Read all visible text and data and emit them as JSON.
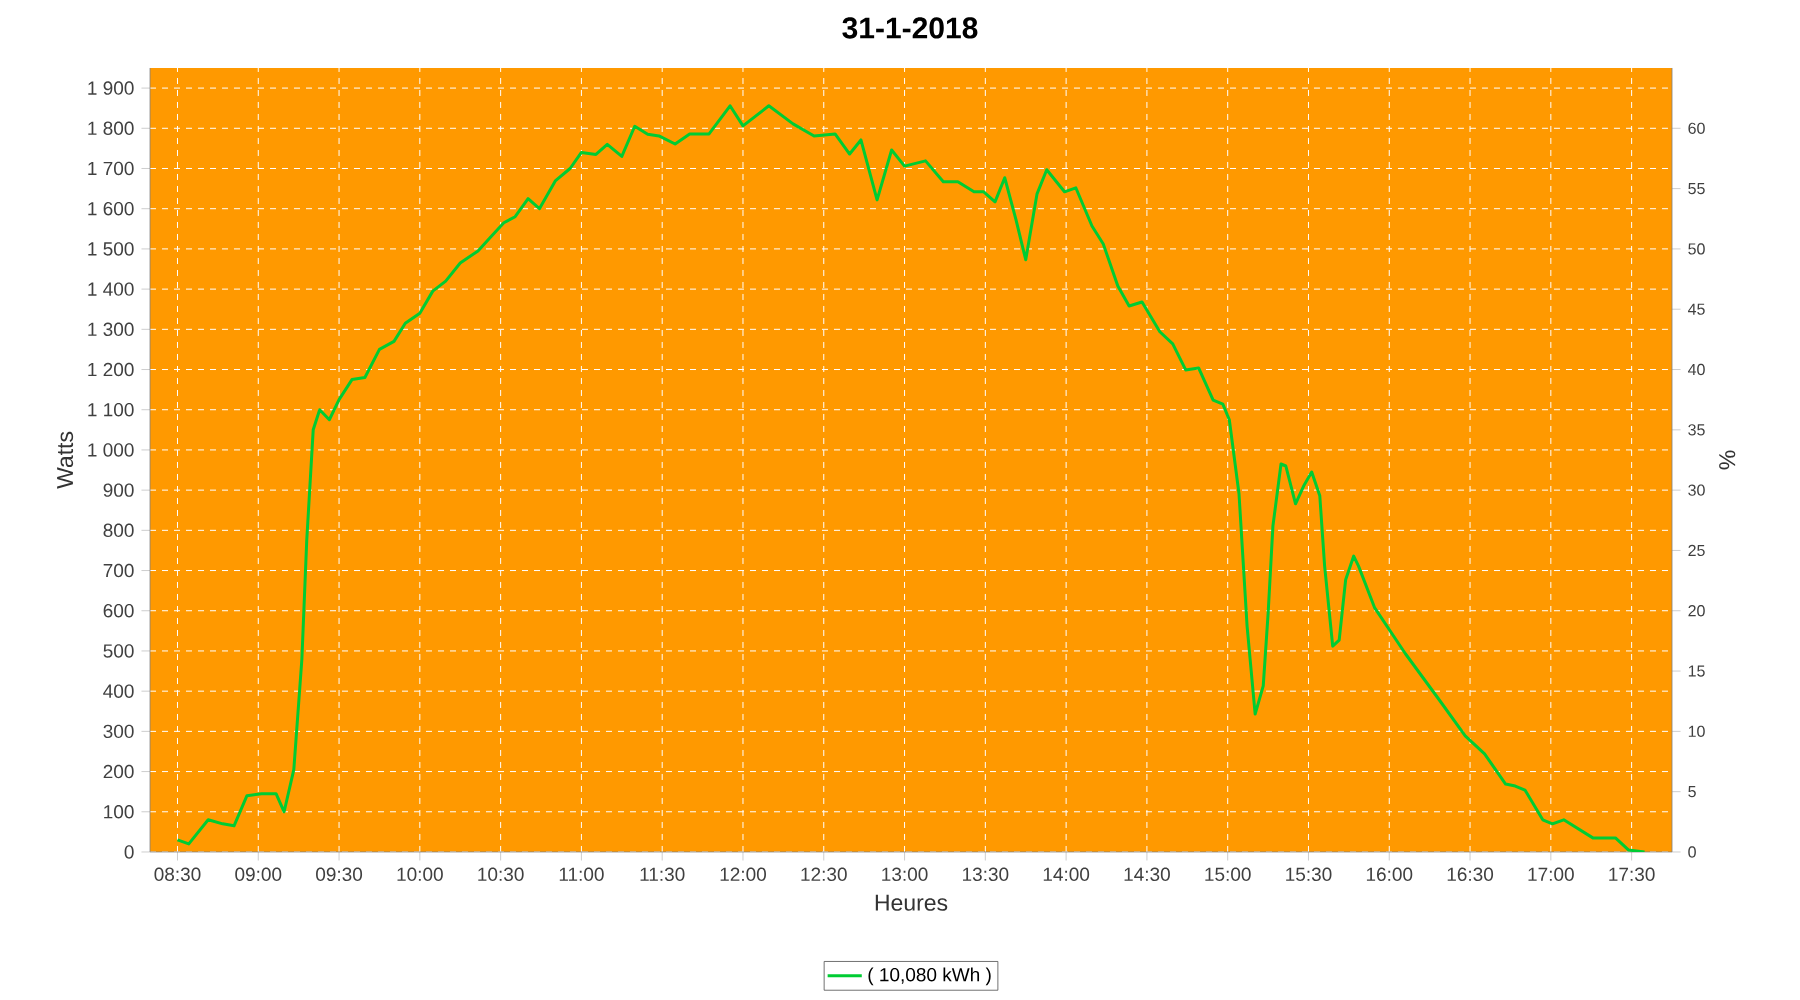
{
  "chart_data": {
    "type": "line",
    "title": "31-1-2018",
    "xlabel": "Heures",
    "ylabel": "Watts",
    "y2label": "%",
    "xlim": [
      8.33,
      17.75
    ],
    "xticks": [
      {
        "value": 8.5,
        "label": "08:30"
      },
      {
        "value": 9,
        "label": "09:00"
      },
      {
        "value": 9.5,
        "label": "09:30"
      },
      {
        "value": 10,
        "label": "10:00"
      },
      {
        "value": 10.5,
        "label": "10:30"
      },
      {
        "value": 11,
        "label": "11:00"
      },
      {
        "value": 11.5,
        "label": "11:30"
      },
      {
        "value": 12,
        "label": "12:00"
      },
      {
        "value": 12.5,
        "label": "12:30"
      },
      {
        "value": 13,
        "label": "13:00"
      },
      {
        "value": 13.5,
        "label": "13:30"
      },
      {
        "value": 14,
        "label": "14:00"
      },
      {
        "value": 14.5,
        "label": "14:30"
      },
      {
        "value": 15,
        "label": "15:00"
      },
      {
        "value": 15.5,
        "label": "15:30"
      },
      {
        "value": 16,
        "label": "16:00"
      },
      {
        "value": 16.5,
        "label": "16:30"
      },
      {
        "value": 17,
        "label": "17:00"
      },
      {
        "value": 17.5,
        "label": "17:30"
      }
    ],
    "ylim": [
      0,
      1950
    ],
    "yticks": [
      0,
      100,
      200,
      300,
      400,
      500,
      600,
      700,
      800,
      900,
      {
        "value": 1000,
        "label": "1 000"
      },
      {
        "value": 1100,
        "label": "1 100"
      },
      {
        "value": 1200,
        "label": "1 200"
      },
      {
        "value": 1300,
        "label": "1 300"
      },
      {
        "value": 1400,
        "label": "1 400"
      },
      {
        "value": 1500,
        "label": "1 500"
      },
      {
        "value": 1600,
        "label": "1 600"
      },
      {
        "value": 1700,
        "label": "1 700"
      },
      {
        "value": 1800,
        "label": "1 800"
      },
      {
        "value": 1900,
        "label": "1 900"
      }
    ],
    "y2lim": [
      0,
      65
    ],
    "y2ticks": [
      0,
      5,
      10,
      15,
      20,
      25,
      30,
      35,
      40,
      45,
      50,
      55,
      60
    ],
    "grid": true,
    "legend": "bottom",
    "marker": "none",
    "line_style": "solid",
    "series": [
      {
        "name": "( 10,080 kWh )",
        "color": "#00cc33",
        "x": [
          8.5,
          8.57,
          8.69,
          8.78,
          8.85,
          8.93,
          9.02,
          9.11,
          9.16,
          9.22,
          9.27,
          9.3,
          9.34,
          9.38,
          9.44,
          9.5,
          9.58,
          9.66,
          9.75,
          9.84,
          9.91,
          10.0,
          10.08,
          10.16,
          10.25,
          10.36,
          10.44,
          10.52,
          10.59,
          10.67,
          10.74,
          10.84,
          10.93,
          11.0,
          11.09,
          11.16,
          11.25,
          11.33,
          11.41,
          11.48,
          11.58,
          11.67,
          11.79,
          11.92,
          12.0,
          12.16,
          12.31,
          12.44,
          12.57,
          12.66,
          12.73,
          12.83,
          12.92,
          13.0,
          13.13,
          13.24,
          13.33,
          13.43,
          13.49,
          13.56,
          13.62,
          13.69,
          13.75,
          13.82,
          13.88,
          13.99,
          14.06,
          14.16,
          14.23,
          14.32,
          14.39,
          14.47,
          14.58,
          14.66,
          14.74,
          14.82,
          14.91,
          14.97,
          15.01,
          15.07,
          15.12,
          15.17,
          15.22,
          15.25,
          15.28,
          15.33,
          15.36,
          15.42,
          15.47,
          15.52,
          15.57,
          15.6,
          15.65,
          15.69,
          15.73,
          15.78,
          15.81,
          15.91,
          16.1,
          16.31,
          16.47,
          16.59,
          16.72,
          16.78,
          16.84,
          16.95,
          17.01,
          17.08,
          17.26,
          17.36,
          17.4,
          17.48,
          17.58
        ],
        "values": [
          30,
          20,
          80,
          70,
          65,
          140,
          145,
          145,
          100,
          205,
          480,
          775,
          1050,
          1100,
          1075,
          1125,
          1175,
          1180,
          1250,
          1270,
          1315,
          1340,
          1395,
          1420,
          1465,
          1495,
          1530,
          1565,
          1580,
          1625,
          1600,
          1670,
          1700,
          1740,
          1735,
          1760,
          1730,
          1805,
          1785,
          1781,
          1761,
          1786,
          1786,
          1856,
          1806,
          1856,
          1811,
          1781,
          1786,
          1736,
          1771,
          1622,
          1746,
          1706,
          1719,
          1667,
          1667,
          1642,
          1642,
          1617,
          1677,
          1572,
          1473,
          1637,
          1697,
          1642,
          1652,
          1557,
          1512,
          1408,
          1358,
          1368,
          1294,
          1264,
          1199,
          1204,
          1124,
          1114,
          1075,
          891,
          562,
          343,
          413,
          592,
          811,
          965,
          960,
          866,
          910,
          945,
          886,
          711,
          512,
          527,
          677,
          736,
          711,
          607,
          493,
          378,
          289,
          244,
          169,
          164,
          154,
          80,
          70,
          80,
          35,
          35,
          35,
          5,
          0
        ]
      }
    ]
  }
}
